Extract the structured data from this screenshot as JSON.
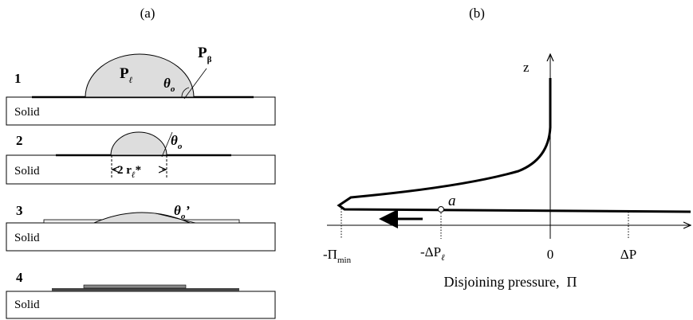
{
  "panel_a": {
    "title": "(a)",
    "steps": [
      {
        "number": "1",
        "substrate": "Solid",
        "pressure_liquid": {
          "main": "P",
          "sub": "ℓ"
        },
        "pressure_gas": {
          "main": "P",
          "sub": "β"
        },
        "angle": {
          "main": "θ",
          "sub": "o"
        }
      },
      {
        "number": "2",
        "substrate": "Solid",
        "angle": {
          "main": "θ",
          "sub": "o"
        },
        "radius": {
          "main": "2 r",
          "sub": "ℓ",
          "tail": "*"
        }
      },
      {
        "number": "3",
        "substrate": "Solid",
        "angle": {
          "main": "θ",
          "sub": "o",
          "tail": "’"
        }
      },
      {
        "number": "4",
        "substrate": "Solid"
      }
    ]
  },
  "panel_b": {
    "title": "(b)",
    "y_axis_label": "z",
    "point_label": "a",
    "x_ticks": [
      {
        "main": "-Π",
        "sub": "min"
      },
      {
        "main": "-ΔP",
        "sub": "ℓ"
      },
      {
        "main": "0"
      },
      {
        "main": "ΔP"
      }
    ],
    "x_axis_label": "Disjoining pressure,  Π"
  }
}
